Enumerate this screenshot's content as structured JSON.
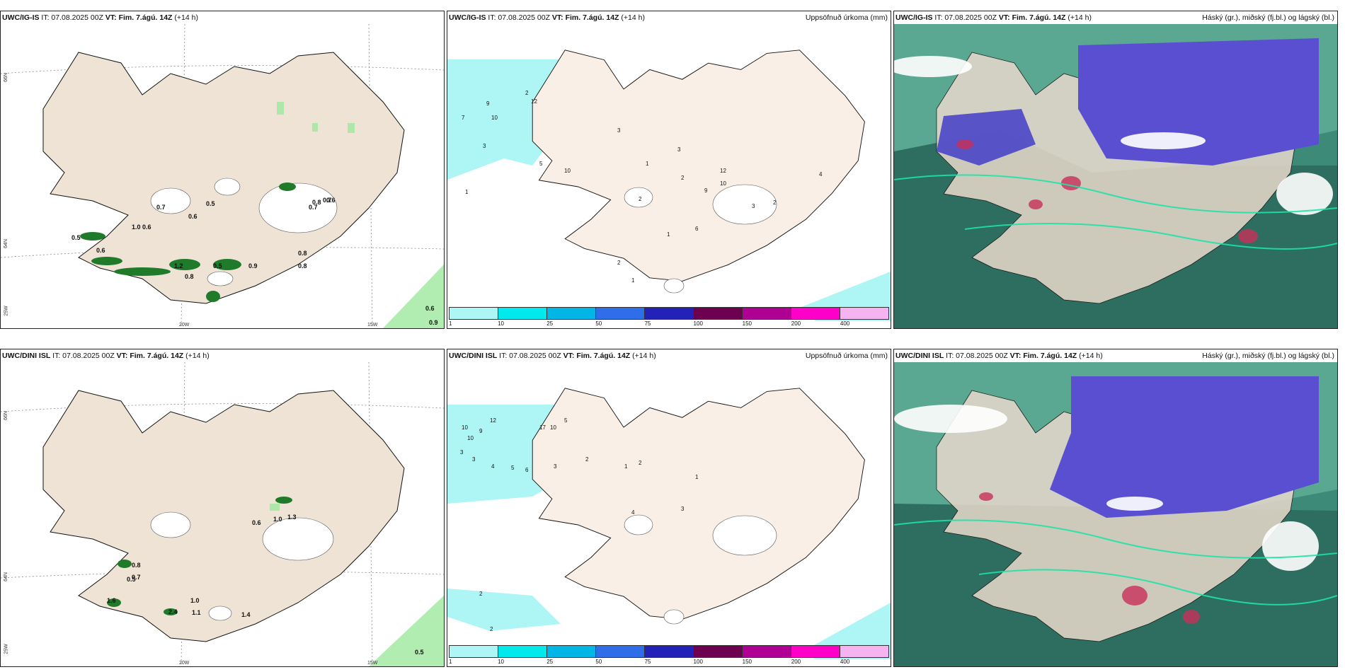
{
  "panels": [
    {
      "source": "UWC/IG-IS",
      "it": "IT: 07.08.2025 00Z",
      "vt_label": "VT: Fim. 7.ágú. 14Z",
      "offset": "(+14 h)",
      "title_right": ""
    },
    {
      "source": "UWC/IG-IS",
      "it": "IT: 07.08.2025 00Z",
      "vt_label": "VT: Fim. 7.ágú. 14Z",
      "offset": "(+14 h)",
      "title_right": "Uppsöfnuð úrkoma (mm)"
    },
    {
      "source": "UWC/IG-IS",
      "it": "IT: 07.08.2025 00Z",
      "vt_label": "VT: Fim. 7.ágú. 14Z",
      "offset": "(+14 h)",
      "title_right": "Háský (gr.), miðský (fj.bl.) og lágský (bl.)"
    },
    {
      "source": "UWC/DINI ISL",
      "it": "IT: 07.08.2025 00Z",
      "vt_label": "VT: Fim. 7.ágú. 14Z",
      "offset": "(+14 h)",
      "title_right": ""
    },
    {
      "source": "UWC/DINI ISL",
      "it": "IT: 07.08.2025 00Z",
      "vt_label": "VT: Fim. 7.ágú. 14Z",
      "offset": "(+14 h)",
      "title_right": "Uppsöfnuð úrkoma (mm)"
    },
    {
      "source": "UWC/DINI ISL",
      "it": "IT: 07.08.2025 00Z",
      "vt_label": "VT: Fim. 7.ágú. 14Z",
      "offset": "(+14 h)",
      "title_right": "Háský (gr.), miðský (fj.bl.) og lágský (bl.)"
    }
  ],
  "coords": {
    "lat66": "66N",
    "lat64": "64N",
    "lon25": "25W",
    "lon20": "20W",
    "lon15": "15W"
  },
  "legend": {
    "labels": [
      "1",
      "10",
      "25",
      "50",
      "75",
      "100",
      "150",
      "200",
      "400"
    ],
    "colors": [
      "#aef5f5",
      "#00e9ec",
      "#00b6e6",
      "#2f6ee8",
      "#2222b8",
      "#6e0050",
      "#b00094",
      "#ff00c8",
      "#f5b4f0"
    ]
  },
  "wind_values_top": [
    "0.7",
    "0.6",
    "0.5",
    "0.5",
    "0.6",
    "1.0",
    "0.6",
    "1.2",
    "0.8",
    "0.5",
    "0.9",
    "0.7",
    "0.8",
    "0.7",
    "0.8",
    "0.6",
    "0.8",
    "0.6",
    "0.9"
  ],
  "wind_values_bottom": [
    "0.8",
    "0.7",
    "0.5",
    "1.6",
    "2.4",
    "1.0",
    "1.1",
    "1.4",
    "0.6",
    "1.0",
    "1.3",
    "0.5"
  ],
  "precip_top": [
    "7",
    "9",
    "10",
    "3",
    "2",
    "12",
    "10",
    "5",
    "3",
    "1",
    "2",
    "1",
    "3",
    "2",
    "1",
    "12",
    "10",
    "9",
    "6",
    "3",
    "2",
    "4",
    "2",
    "1"
  ],
  "precip_bottom": [
    "10",
    "9",
    "10",
    "3",
    "3",
    "4",
    "5",
    "6",
    "3",
    "12",
    "17",
    "10",
    "5",
    "2",
    "1",
    "2",
    "4",
    "3",
    "1",
    "2",
    "2"
  ],
  "colors": {
    "land": "#efe3d6",
    "sea": "#ffffff",
    "precip_light": "#aef5f5",
    "green": "#1f7a2a",
    "cloud_high": "#6a5acd",
    "cloud_mid": "#2e8b7a"
  }
}
